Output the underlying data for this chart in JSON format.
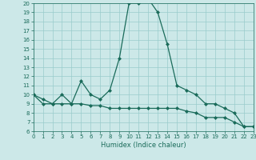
{
  "title": "",
  "xlabel": "Humidex (Indice chaleur)",
  "bg_color": "#cce8e8",
  "grid_color": "#99cccc",
  "line_color": "#1a6b5a",
  "x_main": [
    0,
    1,
    2,
    3,
    4,
    5,
    6,
    7,
    8,
    9,
    10,
    11,
    12,
    13,
    14,
    15,
    16,
    17,
    18,
    19,
    20,
    21,
    22,
    23
  ],
  "y_main": [
    10,
    9,
    9,
    10,
    9,
    11.5,
    10,
    9.5,
    10.5,
    14,
    20,
    20,
    20.5,
    19,
    15.5,
    11,
    10.5,
    10,
    9,
    9,
    8.5,
    8,
    6.5,
    6.5
  ],
  "x_lower": [
    0,
    1,
    2,
    3,
    4,
    5,
    6,
    7,
    8,
    9,
    10,
    11,
    12,
    13,
    14,
    15,
    16,
    17,
    18,
    19,
    20,
    21,
    22,
    23
  ],
  "y_lower": [
    10,
    9.5,
    9,
    9,
    9,
    9,
    8.8,
    8.8,
    8.5,
    8.5,
    8.5,
    8.5,
    8.5,
    8.5,
    8.5,
    8.5,
    8.2,
    8.0,
    7.5,
    7.5,
    7.5,
    7.0,
    6.5,
    6.5
  ],
  "xlim": [
    0,
    23
  ],
  "ylim": [
    6,
    20
  ],
  "yticks": [
    6,
    7,
    8,
    9,
    10,
    11,
    12,
    13,
    14,
    15,
    16,
    17,
    18,
    19,
    20
  ],
  "xticks": [
    0,
    1,
    2,
    3,
    4,
    5,
    6,
    7,
    8,
    9,
    10,
    11,
    12,
    13,
    14,
    15,
    16,
    17,
    18,
    19,
    20,
    21,
    22,
    23
  ],
  "tick_fontsize": 5,
  "xlabel_fontsize": 6,
  "marker": "D",
  "markersize": 2.0,
  "linewidth": 0.9
}
